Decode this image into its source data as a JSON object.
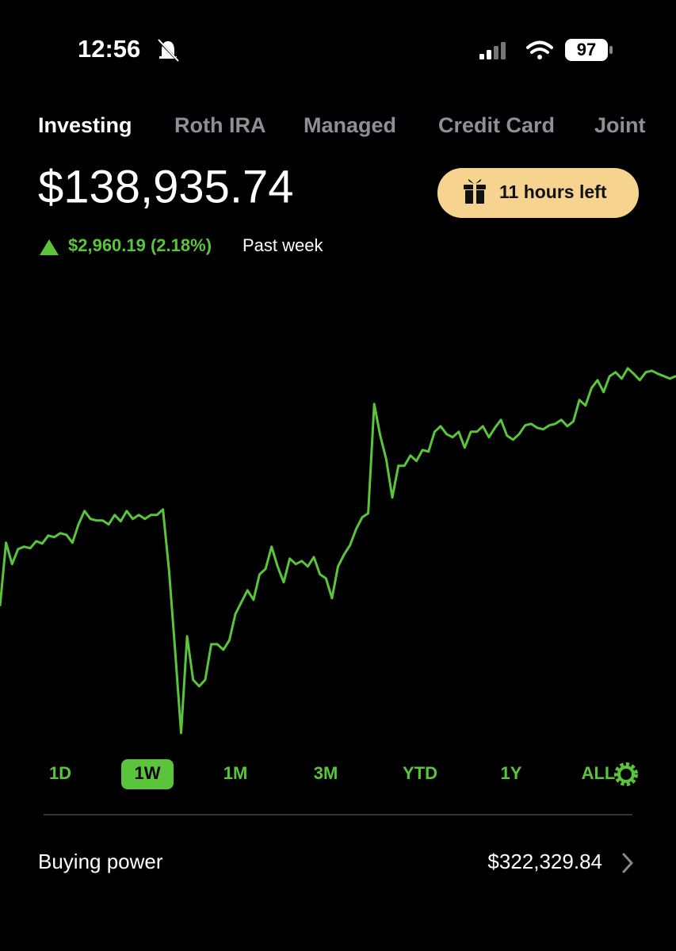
{
  "status_bar": {
    "time": "12:56",
    "battery": "97"
  },
  "tabs": [
    "Investing",
    "Roth IRA",
    "Managed",
    "Credit Card",
    "Joint"
  ],
  "active_tab": 0,
  "portfolio": {
    "balance": "$138,935.74",
    "promo": "11 hours left",
    "change": "$2,960.19 (2.18%)",
    "period": "Past week"
  },
  "chart_data": {
    "type": "line",
    "color": "#5ac53b",
    "ylim": [
      134190,
      139900
    ],
    "values": [
      135976,
      136792,
      136517,
      136710,
      136741,
      136721,
      136812,
      136782,
      136884,
      136863,
      136914,
      136894,
      136792,
      137027,
      137200,
      137098,
      137078,
      137078,
      137027,
      137149,
      137067,
      137200,
      137098,
      137149,
      137098,
      137149,
      137149,
      137220,
      136435,
      135415,
      134344,
      135588,
      135027,
      134946,
      135027,
      135486,
      135486,
      135415,
      135537,
      135874,
      136027,
      136180,
      136058,
      136384,
      136455,
      136741,
      136486,
      136282,
      136588,
      136517,
      136557,
      136486,
      136608,
      136384,
      136333,
      136078,
      136486,
      136639,
      136761,
      136965,
      137118,
      137169,
      138577,
      138169,
      137863,
      137373,
      137781,
      137781,
      137914,
      137843,
      137985,
      137965,
      138220,
      138291,
      138189,
      138149,
      138220,
      138016,
      138220,
      138220,
      138291,
      138149,
      138271,
      138373,
      138169,
      138118,
      138189,
      138302,
      138322,
      138271,
      138251,
      138302,
      138322,
      138373,
      138291,
      138353,
      138628,
      138557,
      138781,
      138883,
      138730,
      138934,
      138985,
      138903,
      139036,
      138965,
      138883,
      138985,
      139005,
      138965,
      138934,
      138903,
      138936
    ]
  },
  "ranges": [
    "1D",
    "1W",
    "1M",
    "3M",
    "YTD",
    "1Y",
    "ALL"
  ],
  "selected_range": 1,
  "buying_power": {
    "label": "Buying power",
    "value": "$322,329.84"
  }
}
